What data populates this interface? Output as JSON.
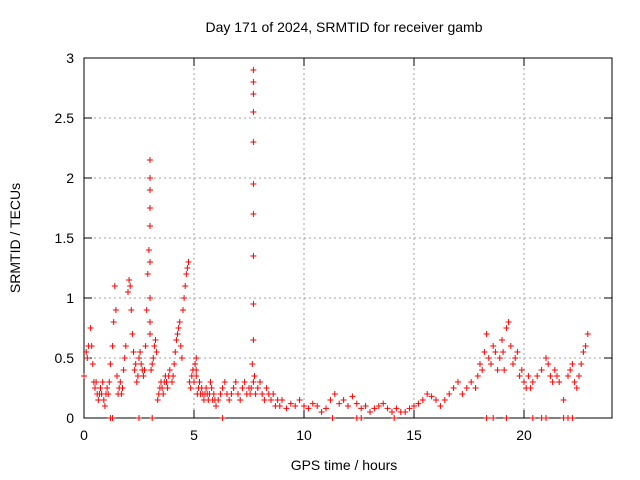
{
  "chart_data": {
    "type": "scatter",
    "title": "Day 171 of 2024, SRMTID for receiver gamb",
    "xlabel": "GPS time / hours",
    "ylabel": "SRMTID / TECUs",
    "xlim": [
      0,
      24
    ],
    "ylim": [
      0,
      3
    ],
    "xticks": [
      0,
      5,
      10,
      15,
      20
    ],
    "yticks": [
      0,
      0.5,
      1,
      1.5,
      2,
      2.5,
      3
    ],
    "ytick_labels": [
      "0",
      "0.5",
      "1",
      "1.5",
      "2",
      "2.5",
      "3"
    ],
    "grid": true,
    "marker": "+",
    "color": "#ff0000",
    "series": [
      {
        "name": "SRMTID",
        "x": [
          0.0,
          0.1,
          0.15,
          0.2,
          0.3,
          0.35,
          0.4,
          0.45,
          0.5,
          0.55,
          0.6,
          0.65,
          0.7,
          0.75,
          0.8,
          0.85,
          0.9,
          0.95,
          1.0,
          1.05,
          1.1,
          1.15,
          1.2,
          1.3,
          1.35,
          1.4,
          1.45,
          1.5,
          1.55,
          1.6,
          1.65,
          1.7,
          1.75,
          1.8,
          1.85,
          1.9,
          2.0,
          2.05,
          2.1,
          2.15,
          2.2,
          2.25,
          2.3,
          2.35,
          2.4,
          2.45,
          2.5,
          2.55,
          2.6,
          2.65,
          2.7,
          2.75,
          2.8,
          2.85,
          2.9,
          2.95,
          3.0,
          3.0,
          3.0,
          3.0,
          3.0,
          3.0,
          3.0,
          3.0,
          3.0,
          3.05,
          3.1,
          3.15,
          3.2,
          3.25,
          3.3,
          3.35,
          3.4,
          3.45,
          3.5,
          3.55,
          3.6,
          3.65,
          3.7,
          3.75,
          3.8,
          3.85,
          3.9,
          4.0,
          4.05,
          4.1,
          4.15,
          4.2,
          4.25,
          4.3,
          4.35,
          4.4,
          4.45,
          4.5,
          4.55,
          4.6,
          4.65,
          4.7,
          4.75,
          4.8,
          4.85,
          4.9,
          4.95,
          5.0,
          5.05,
          5.1,
          5.1,
          5.1,
          5.15,
          5.2,
          5.25,
          5.3,
          5.35,
          5.4,
          5.45,
          5.5,
          5.55,
          5.6,
          5.65,
          5.7,
          5.75,
          5.8,
          5.85,
          5.9,
          5.95,
          6.0,
          6.1,
          6.2,
          6.3,
          6.4,
          6.5,
          6.6,
          6.7,
          6.8,
          6.9,
          7.0,
          7.1,
          7.2,
          7.3,
          7.4,
          7.5,
          7.55,
          7.6,
          7.65,
          7.7,
          7.7,
          7.7,
          7.7,
          7.7,
          7.7,
          7.7,
          7.7,
          7.7,
          7.7,
          7.7,
          7.75,
          7.8,
          7.9,
          8.0,
          8.1,
          8.2,
          8.3,
          8.4,
          8.5,
          8.6,
          8.7,
          8.8,
          8.9,
          9.0,
          9.2,
          9.4,
          9.6,
          9.8,
          10.0,
          10.2,
          10.4,
          10.6,
          10.8,
          11.0,
          11.2,
          11.4,
          11.6,
          11.8,
          12.0,
          12.2,
          12.4,
          12.6,
          12.8,
          13.0,
          13.2,
          13.4,
          13.6,
          13.8,
          14.0,
          14.2,
          14.4,
          14.6,
          14.8,
          15.0,
          15.2,
          15.4,
          15.6,
          15.8,
          16.0,
          16.2,
          16.4,
          16.6,
          16.8,
          17.0,
          17.2,
          17.4,
          17.6,
          17.8,
          17.9,
          18.0,
          18.1,
          18.2,
          18.3,
          18.4,
          18.5,
          18.6,
          18.7,
          18.8,
          18.9,
          19.0,
          19.05,
          19.1,
          19.2,
          19.3,
          19.4,
          19.5,
          19.6,
          19.7,
          19.8,
          19.9,
          20.0,
          20.1,
          20.2,
          20.3,
          20.4,
          20.6,
          20.8,
          21.0,
          21.1,
          21.2,
          21.3,
          21.4,
          21.5,
          21.6,
          21.8,
          22.0,
          22.1,
          22.2,
          22.3,
          22.4,
          22.5,
          22.6,
          22.7,
          22.8,
          22.9,
          1.2,
          1.3,
          2.5,
          3.1,
          6.3,
          11.3,
          12.4,
          12.6,
          14.1,
          18.3,
          18.6,
          19.2,
          20.4,
          20.8,
          21.0,
          21.8,
          22.0,
          22.2
        ],
        "y": [
          0.35,
          0.55,
          0.5,
          0.6,
          0.75,
          0.6,
          0.45,
          0.3,
          0.25,
          0.3,
          0.2,
          0.15,
          0.2,
          0.25,
          0.2,
          0.3,
          0.15,
          0.1,
          0.2,
          0.25,
          0.2,
          0.3,
          0.45,
          0.6,
          0.8,
          1.1,
          0.9,
          0.35,
          0.2,
          0.25,
          0.3,
          0.2,
          0.25,
          0.4,
          0.5,
          0.6,
          1.05,
          1.15,
          1.1,
          0.9,
          0.7,
          0.55,
          0.4,
          0.45,
          0.3,
          0.35,
          0.5,
          0.55,
          0.45,
          0.4,
          0.35,
          0.4,
          0.6,
          0.9,
          1.2,
          1.4,
          1.6,
          1.75,
          1.9,
          2.0,
          2.15,
          0.7,
          0.8,
          1.0,
          1.3,
          0.4,
          0.45,
          0.5,
          0.6,
          0.65,
          0.55,
          0.15,
          0.2,
          0.25,
          0.3,
          0.25,
          0.2,
          0.3,
          0.35,
          0.3,
          0.25,
          0.35,
          0.4,
          0.3,
          0.35,
          0.45,
          0.55,
          0.65,
          0.7,
          0.75,
          0.8,
          0.6,
          0.5,
          0.9,
          1.0,
          1.1,
          1.2,
          1.25,
          1.3,
          0.3,
          0.25,
          0.35,
          0.4,
          0.3,
          0.45,
          0.4,
          0.35,
          0.5,
          0.2,
          0.25,
          0.3,
          0.2,
          0.25,
          0.2,
          0.15,
          0.2,
          0.25,
          0.2,
          0.15,
          0.2,
          0.3,
          0.25,
          0.15,
          0.2,
          0.15,
          0.1,
          0.15,
          0.2,
          0.25,
          0.3,
          0.2,
          0.15,
          0.2,
          0.25,
          0.3,
          0.2,
          0.15,
          0.25,
          0.3,
          0.2,
          0.25,
          0.2,
          0.25,
          0.45,
          0.65,
          0.95,
          1.35,
          1.7,
          1.95,
          2.3,
          2.55,
          2.7,
          2.8,
          2.9,
          0.3,
          0.35,
          0.2,
          0.25,
          0.3,
          0.2,
          0.15,
          0.25,
          0.2,
          0.15,
          0.2,
          0.1,
          0.15,
          0.1,
          0.15,
          0.08,
          0.12,
          0.1,
          0.15,
          0.1,
          0.08,
          0.12,
          0.1,
          0.05,
          0.08,
          0.15,
          0.2,
          0.12,
          0.15,
          0.1,
          0.18,
          0.12,
          0.08,
          0.1,
          0.05,
          0.08,
          0.1,
          0.12,
          0.08,
          0.05,
          0.08,
          0.05,
          0.05,
          0.08,
          0.1,
          0.12,
          0.15,
          0.2,
          0.18,
          0.15,
          0.1,
          0.15,
          0.2,
          0.25,
          0.3,
          0.2,
          0.25,
          0.3,
          0.25,
          0.35,
          0.45,
          0.4,
          0.55,
          0.7,
          0.5,
          0.45,
          0.6,
          0.55,
          0.4,
          0.5,
          0.65,
          0.55,
          0.4,
          0.75,
          0.8,
          0.6,
          0.45,
          0.5,
          0.55,
          0.35,
          0.4,
          0.3,
          0.25,
          0.35,
          0.25,
          0.3,
          0.35,
          0.4,
          0.5,
          0.45,
          0.35,
          0.3,
          0.4,
          0.35,
          0.3,
          0.15,
          0.35,
          0.4,
          0.45,
          0.3,
          0.25,
          0.35,
          0.45,
          0.55,
          0.6,
          0.7,
          0,
          0,
          0,
          0,
          0,
          0,
          0,
          0,
          0,
          0,
          0,
          0,
          0,
          0,
          0,
          0,
          0,
          0
        ]
      }
    ]
  }
}
